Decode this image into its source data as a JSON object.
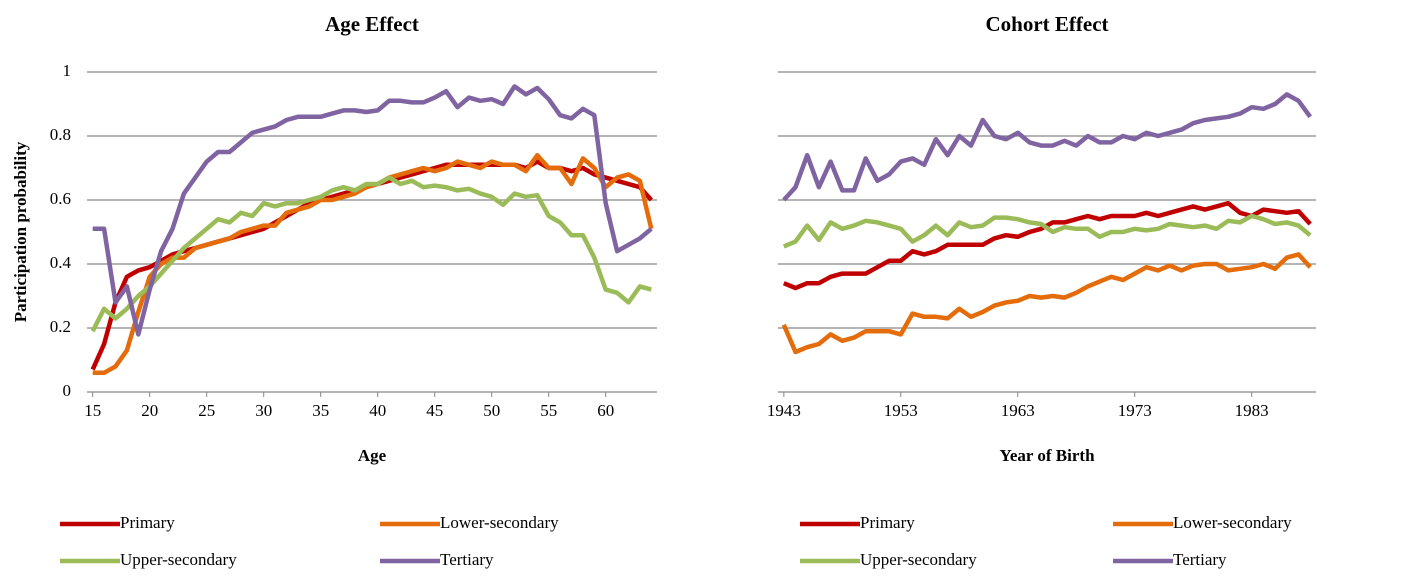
{
  "chart_data": [
    {
      "type": "line",
      "title": "Age Effect",
      "x_label": "Age",
      "y_label": "Participation probability",
      "x": [
        15,
        16,
        17,
        18,
        19,
        20,
        21,
        22,
        23,
        24,
        25,
        26,
        27,
        28,
        29,
        30,
        31,
        32,
        33,
        34,
        35,
        36,
        37,
        38,
        39,
        40,
        41,
        42,
        43,
        44,
        45,
        46,
        47,
        48,
        49,
        50,
        51,
        52,
        53,
        54,
        55,
        56,
        57,
        58,
        59,
        60,
        61,
        62,
        63,
        64
      ],
      "xlim": [
        14.5,
        64.5
      ],
      "xticks": [
        15,
        20,
        25,
        30,
        35,
        40,
        45,
        50,
        55,
        60
      ],
      "ylim": [
        0,
        1
      ],
      "yticks": [
        0,
        0.2,
        0.4,
        0.6,
        0.8,
        1
      ],
      "ytick_labels": true,
      "grid": true,
      "legend": "bottom",
      "series": [
        {
          "name": "Primary",
          "color": "#c00000",
          "values": [
            0.07,
            0.15,
            0.28,
            0.36,
            0.38,
            0.39,
            0.41,
            0.43,
            0.44,
            0.45,
            0.46,
            0.47,
            0.48,
            0.49,
            0.5,
            0.51,
            0.53,
            0.55,
            0.57,
            0.59,
            0.6,
            0.61,
            0.62,
            0.63,
            0.64,
            0.65,
            0.66,
            0.67,
            0.68,
            0.69,
            0.7,
            0.71,
            0.71,
            0.71,
            0.71,
            0.71,
            0.71,
            0.71,
            0.7,
            0.72,
            0.7,
            0.7,
            0.69,
            0.7,
            0.68,
            0.67,
            0.66,
            0.65,
            0.64,
            0.6
          ]
        },
        {
          "name": "Lower-secondary",
          "color": "#e46c0a",
          "values": [
            0.06,
            0.06,
            0.08,
            0.13,
            0.25,
            0.36,
            0.4,
            0.42,
            0.42,
            0.45,
            0.46,
            0.47,
            0.48,
            0.5,
            0.51,
            0.52,
            0.52,
            0.56,
            0.57,
            0.58,
            0.6,
            0.6,
            0.61,
            0.62,
            0.64,
            0.65,
            0.67,
            0.68,
            0.69,
            0.7,
            0.69,
            0.7,
            0.72,
            0.71,
            0.7,
            0.72,
            0.71,
            0.71,
            0.69,
            0.74,
            0.7,
            0.7,
            0.65,
            0.73,
            0.7,
            0.64,
            0.67,
            0.68,
            0.66,
            0.51
          ]
        },
        {
          "name": "Upper-secondary",
          "color": "#9bbb59",
          "values": [
            0.19,
            0.26,
            0.23,
            0.26,
            0.3,
            0.33,
            0.37,
            0.41,
            0.45,
            0.48,
            0.51,
            0.54,
            0.53,
            0.56,
            0.55,
            0.59,
            0.58,
            0.59,
            0.59,
            0.6,
            0.61,
            0.63,
            0.64,
            0.63,
            0.65,
            0.65,
            0.67,
            0.65,
            0.66,
            0.64,
            0.645,
            0.64,
            0.63,
            0.635,
            0.62,
            0.61,
            0.585,
            0.62,
            0.61,
            0.615,
            0.55,
            0.53,
            0.49,
            0.49,
            0.42,
            0.32,
            0.31,
            0.28,
            0.33,
            0.32
          ]
        },
        {
          "name": "Tertiary",
          "color": "#8064a2",
          "values": [
            0.51,
            0.51,
            0.28,
            0.33,
            0.18,
            0.32,
            0.44,
            0.51,
            0.62,
            0.67,
            0.72,
            0.75,
            0.75,
            0.78,
            0.81,
            0.82,
            0.83,
            0.85,
            0.86,
            0.86,
            0.86,
            0.87,
            0.88,
            0.88,
            0.875,
            0.88,
            0.91,
            0.91,
            0.905,
            0.905,
            0.92,
            0.94,
            0.89,
            0.92,
            0.91,
            0.915,
            0.9,
            0.955,
            0.93,
            0.95,
            0.915,
            0.865,
            0.855,
            0.885,
            0.865,
            0.59,
            0.44,
            0.46,
            0.48,
            0.51
          ]
        }
      ]
    },
    {
      "type": "line",
      "title": "Cohort Effect",
      "x_label": "Year of Birth",
      "x": [
        1943,
        1944,
        1945,
        1946,
        1947,
        1948,
        1949,
        1950,
        1951,
        1952,
        1953,
        1954,
        1955,
        1956,
        1957,
        1958,
        1959,
        1960,
        1961,
        1962,
        1963,
        1964,
        1965,
        1966,
        1967,
        1968,
        1969,
        1970,
        1971,
        1972,
        1973,
        1974,
        1975,
        1976,
        1977,
        1978,
        1979,
        1980,
        1981,
        1982,
        1983,
        1984,
        1985,
        1986,
        1987,
        1988
      ],
      "xlim": [
        1942.5,
        1988.5
      ],
      "xticks": [
        1943,
        1953,
        1963,
        1973,
        1983
      ],
      "ylim": [
        0,
        1
      ],
      "yticks": [
        0,
        0.2,
        0.4,
        0.6,
        0.8,
        1
      ],
      "ytick_labels": false,
      "grid": true,
      "legend": "bottom",
      "series": [
        {
          "name": "Primary",
          "color": "#c00000",
          "values": [
            0.34,
            0.325,
            0.34,
            0.34,
            0.36,
            0.37,
            0.37,
            0.37,
            0.39,
            0.41,
            0.41,
            0.44,
            0.43,
            0.44,
            0.46,
            0.46,
            0.46,
            0.46,
            0.48,
            0.49,
            0.485,
            0.5,
            0.51,
            0.53,
            0.53,
            0.54,
            0.55,
            0.54,
            0.55,
            0.55,
            0.55,
            0.56,
            0.55,
            0.56,
            0.57,
            0.58,
            0.57,
            0.58,
            0.59,
            0.56,
            0.55,
            0.57,
            0.565,
            0.56,
            0.565,
            0.525
          ]
        },
        {
          "name": "Lower-secondary",
          "color": "#e46c0a",
          "values": [
            0.21,
            0.125,
            0.14,
            0.15,
            0.18,
            0.16,
            0.17,
            0.19,
            0.19,
            0.19,
            0.18,
            0.245,
            0.235,
            0.235,
            0.23,
            0.26,
            0.235,
            0.25,
            0.27,
            0.28,
            0.285,
            0.3,
            0.295,
            0.3,
            0.295,
            0.31,
            0.33,
            0.345,
            0.36,
            0.35,
            0.37,
            0.39,
            0.38,
            0.395,
            0.38,
            0.395,
            0.4,
            0.4,
            0.38,
            0.385,
            0.39,
            0.4,
            0.385,
            0.42,
            0.43,
            0.39
          ]
        },
        {
          "name": "Upper-secondary",
          "color": "#9bbb59",
          "values": [
            0.455,
            0.47,
            0.52,
            0.475,
            0.53,
            0.51,
            0.52,
            0.535,
            0.53,
            0.52,
            0.51,
            0.47,
            0.49,
            0.52,
            0.49,
            0.53,
            0.515,
            0.52,
            0.545,
            0.545,
            0.54,
            0.53,
            0.525,
            0.5,
            0.515,
            0.51,
            0.51,
            0.485,
            0.5,
            0.5,
            0.51,
            0.505,
            0.51,
            0.525,
            0.52,
            0.515,
            0.52,
            0.51,
            0.535,
            0.53,
            0.55,
            0.54,
            0.525,
            0.53,
            0.52,
            0.49
          ]
        },
        {
          "name": "Tertiary",
          "color": "#8064a2",
          "values": [
            0.6,
            0.64,
            0.74,
            0.64,
            0.72,
            0.63,
            0.63,
            0.73,
            0.66,
            0.68,
            0.72,
            0.73,
            0.71,
            0.79,
            0.74,
            0.8,
            0.77,
            0.85,
            0.8,
            0.79,
            0.81,
            0.78,
            0.77,
            0.77,
            0.785,
            0.77,
            0.8,
            0.78,
            0.78,
            0.8,
            0.79,
            0.81,
            0.8,
            0.81,
            0.82,
            0.84,
            0.85,
            0.855,
            0.86,
            0.87,
            0.89,
            0.885,
            0.9,
            0.93,
            0.91,
            0.86
          ]
        }
      ]
    }
  ]
}
